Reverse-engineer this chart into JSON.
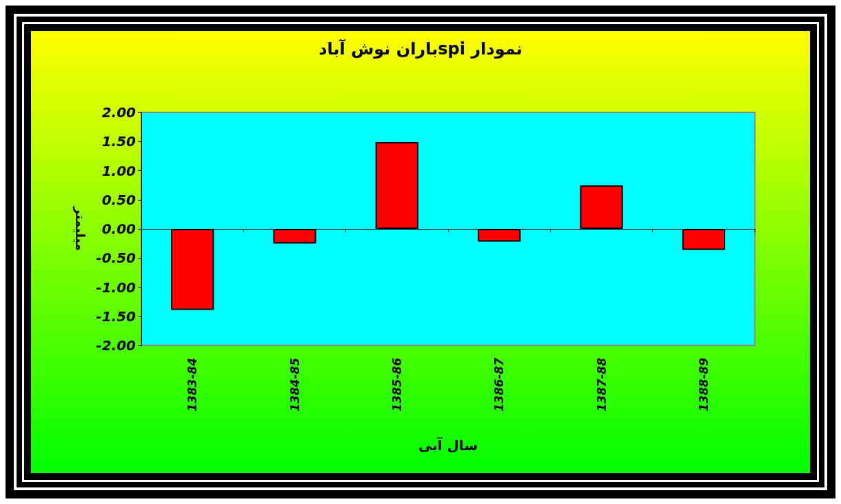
{
  "chart_data": {
    "type": "bar",
    "title": "نمودار spiباران نوش آباد",
    "xlabel": "سال آبی",
    "ylabel": "میلیمتر",
    "categories": [
      "1383-84",
      "1384-85",
      "1385-86",
      "1386-87",
      "1387-88",
      "1388-89"
    ],
    "values": [
      -1.39,
      -0.25,
      1.49,
      -0.22,
      0.75,
      -0.36
    ],
    "color": "#ff0000",
    "ylim": [
      -2,
      2
    ],
    "yticks": [
      {
        "value": -2,
        "label": "-2.00"
      },
      {
        "value": -1.5,
        "label": "-1.50"
      },
      {
        "value": -1,
        "label": "-1.00"
      },
      {
        "value": -0.5,
        "label": "-0.50"
      },
      {
        "value": 0,
        "label": "0.00"
      },
      {
        "value": 0.5,
        "label": "0.50"
      },
      {
        "value": 1,
        "label": "1.00"
      },
      {
        "value": 1.5,
        "label": "1.50"
      },
      {
        "value": 2,
        "label": "2.00"
      }
    ]
  }
}
